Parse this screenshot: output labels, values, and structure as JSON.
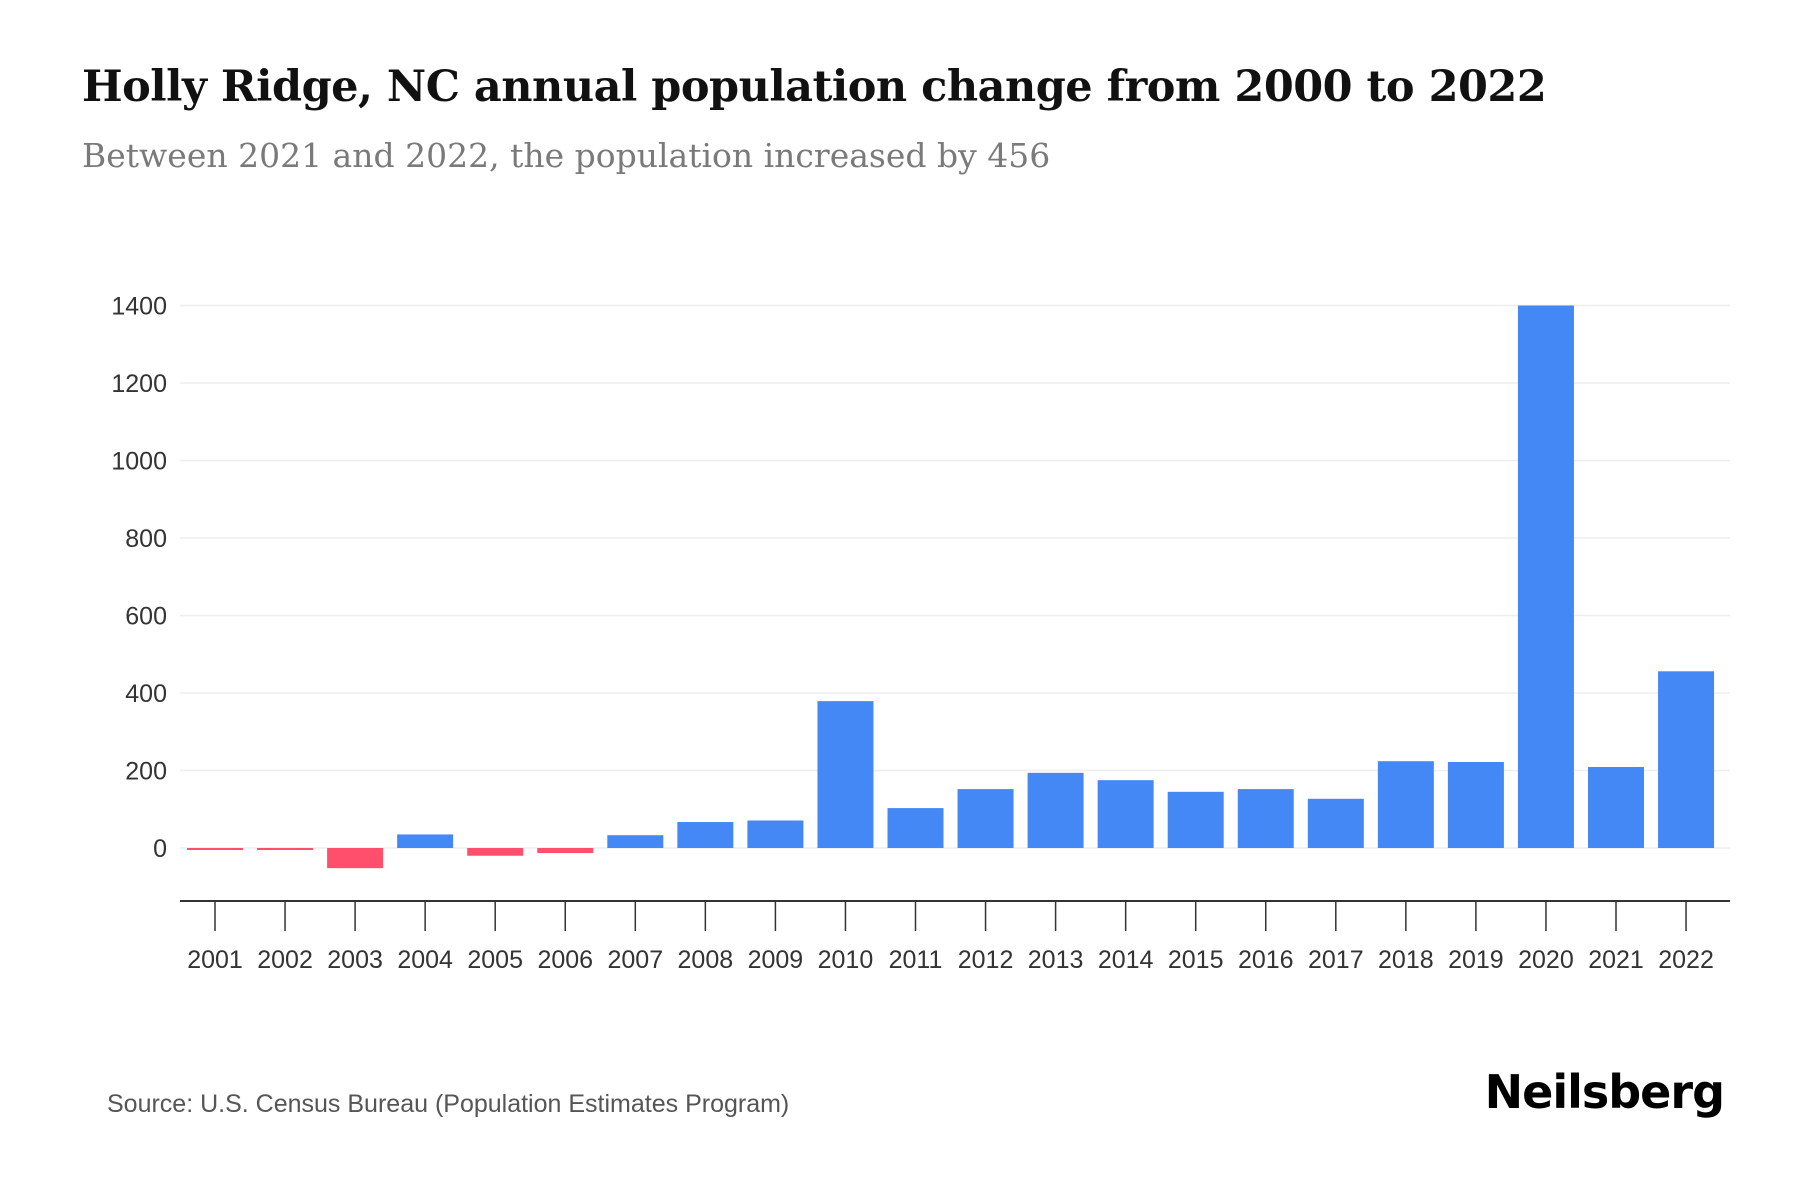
{
  "header": {
    "title": "Holly Ridge, NC annual population change from 2000 to 2022",
    "subtitle": "Between 2021 and 2022, the population increased by 456"
  },
  "footer": {
    "source": "Source: U.S. Census Bureau (Population Estimates Program)",
    "brand": "Neilsberg"
  },
  "chart_data": {
    "type": "bar",
    "title": "Holly Ridge, NC annual population change from 2000 to 2022",
    "subtitle": "Between 2021 and 2022, the population increased by 456",
    "xlabel": "",
    "ylabel": "",
    "categories": [
      "2001",
      "2002",
      "2003",
      "2004",
      "2005",
      "2006",
      "2007",
      "2008",
      "2009",
      "2010",
      "2011",
      "2012",
      "2013",
      "2014",
      "2015",
      "2016",
      "2017",
      "2018",
      "2019",
      "2020",
      "2021",
      "2022"
    ],
    "values": [
      -5,
      -5,
      -52,
      35,
      -20,
      -13,
      33,
      67,
      71,
      379,
      103,
      152,
      194,
      175,
      145,
      152,
      127,
      224,
      222,
      1400,
      209,
      456
    ],
    "ylim": [
      -130,
      1400
    ],
    "yticks": [
      0,
      200,
      400,
      600,
      800,
      1000,
      1200,
      1400
    ],
    "grid": true,
    "legend": "none",
    "colors": {
      "positive": "#4488f5",
      "negative": "#ff4f6c"
    }
  }
}
